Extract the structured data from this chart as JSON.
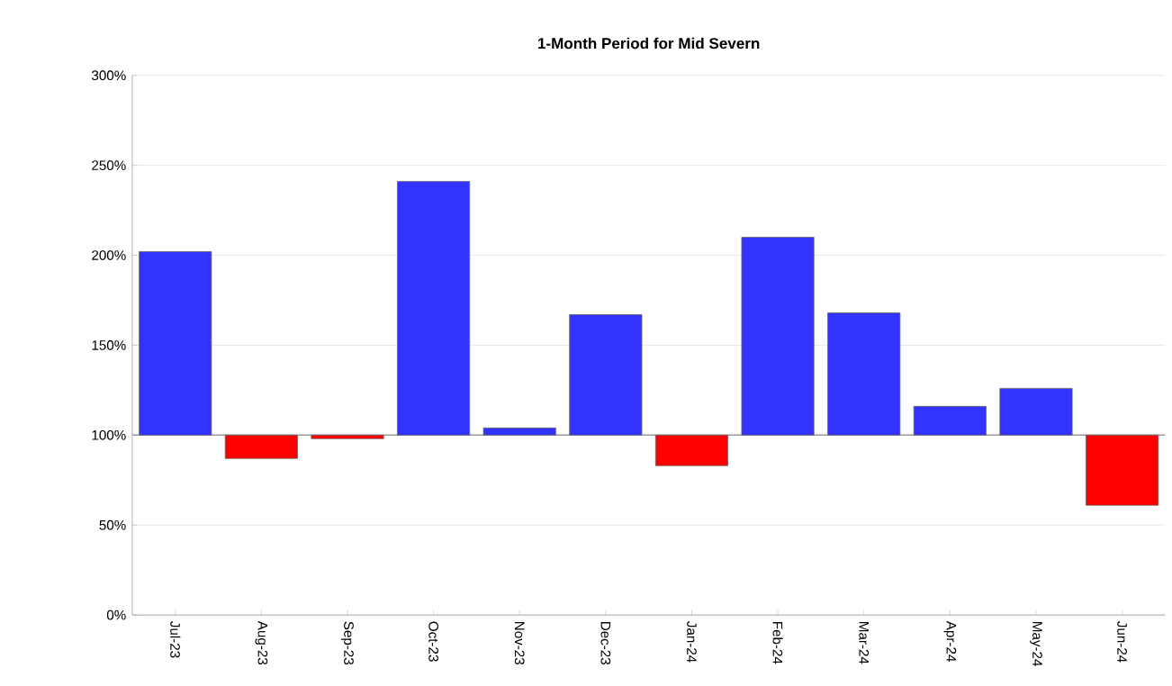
{
  "chart_data": {
    "type": "bar",
    "title": "1-Month Period for Mid Severn",
    "categories": [
      "Jul-23",
      "Aug-23",
      "Sep-23",
      "Oct-23",
      "Nov-23",
      "Dec-23",
      "Jan-24",
      "Feb-24",
      "Mar-24",
      "Apr-24",
      "May-24",
      "Jun-24"
    ],
    "base": [
      100,
      100,
      100,
      100,
      100,
      100,
      100,
      100,
      100,
      100,
      100,
      100
    ],
    "values": [
      102,
      -13,
      -2,
      141,
      4,
      67,
      -17,
      110,
      68,
      16,
      26,
      -39
    ],
    "colors": [
      "#3333ff",
      "#ff0000",
      "#ff0000",
      "#3333ff",
      "#3333ff",
      "#3333ff",
      "#ff0000",
      "#3333ff",
      "#3333ff",
      "#3333ff",
      "#3333ff",
      "#ff0000"
    ],
    "ylim": [
      0,
      300
    ],
    "yticks": [
      {
        "value": 0,
        "label": "0%"
      },
      {
        "value": 50,
        "label": "50%"
      },
      {
        "value": 100,
        "label": "100%"
      },
      {
        "value": 150,
        "label": "150%"
      },
      {
        "value": 200,
        "label": "200%"
      },
      {
        "value": 250,
        "label": "250%"
      },
      {
        "value": 300,
        "label": "300%"
      }
    ],
    "ref_lines": [
      {
        "axis": "y",
        "value": 100,
        "color": "#999999"
      }
    ],
    "grid": "y"
  }
}
